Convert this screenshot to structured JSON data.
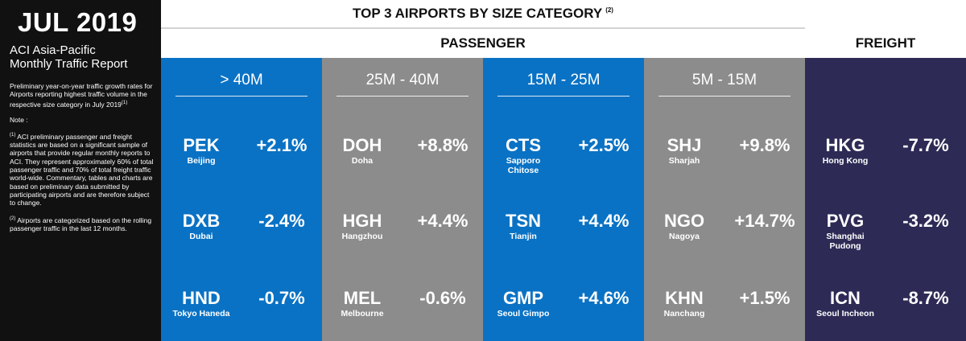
{
  "sidebar": {
    "month": "JUL 2019",
    "title_line1": "ACI Asia-Pacific",
    "title_line2": "Monthly Traffic Report",
    "intro": "Preliminary year-on-year traffic growth rates for Airports reporting highest traffic volume in the respective size category in July 2019",
    "intro_sup": "(1)",
    "note_label": "Note :",
    "note1_marker": "(1)",
    "note1": "ACI preliminary passenger and freight statistics are based on a significant sample of airports that provide regular monthly reports to ACI. They represent approximately 60% of total passenger traffic and 70% of total freight traffic world-wide. Commentary, tables and charts are based on preliminary data submitted by participating airports and are therefore subject to change.",
    "note2_marker": "(2)",
    "note2": "Airports are categorized based on the rolling passenger traffic in the last 12 months."
  },
  "header": {
    "title": "TOP 3 AIRPORTS BY SIZE CATEGORY",
    "title_sup": "(2)",
    "passenger": "PASSENGER",
    "freight": "FREIGHT"
  },
  "colors": {
    "blue": "#0a72c4",
    "grey": "#8c8c8c",
    "navy": "#2d2b55",
    "sidebar": "#111111"
  },
  "columns": [
    {
      "category": "> 40M",
      "airports": [
        {
          "code": "PEK",
          "city": "Beijing",
          "change": "+2.1%"
        },
        {
          "code": "DXB",
          "city": "Dubai",
          "change": "-2.4%"
        },
        {
          "code": "HND",
          "city": "Tokyo Haneda",
          "change": "-0.7%"
        }
      ]
    },
    {
      "category": "25M - 40M",
      "airports": [
        {
          "code": "DOH",
          "city": "Doha",
          "change": "+8.8%"
        },
        {
          "code": "HGH",
          "city": "Hangzhou",
          "change": "+4.4%"
        },
        {
          "code": "MEL",
          "city": "Melbourne",
          "change": "-0.6%"
        }
      ]
    },
    {
      "category": "15M - 25M",
      "airports": [
        {
          "code": "CTS",
          "city": "Sapporo Chitose",
          "change": "+2.5%"
        },
        {
          "code": "TSN",
          "city": "Tianjin",
          "change": "+4.4%"
        },
        {
          "code": "GMP",
          "city": "Seoul Gimpo",
          "change": "+4.6%"
        }
      ]
    },
    {
      "category": "5M - 15M",
      "airports": [
        {
          "code": "SHJ",
          "city": "Sharjah",
          "change": "+9.8%"
        },
        {
          "code": "NGO",
          "city": "Nagoya",
          "change": "+14.7%"
        },
        {
          "code": "KHN",
          "city": "Nanchang",
          "change": "+1.5%"
        }
      ]
    },
    {
      "category": "",
      "airports": [
        {
          "code": "HKG",
          "city": "Hong Kong",
          "change": "-7.7%"
        },
        {
          "code": "PVG",
          "city": "Shanghai Pudong",
          "change": "-3.2%"
        },
        {
          "code": "ICN",
          "city": "Seoul Incheon",
          "change": "-8.7%"
        }
      ]
    }
  ]
}
